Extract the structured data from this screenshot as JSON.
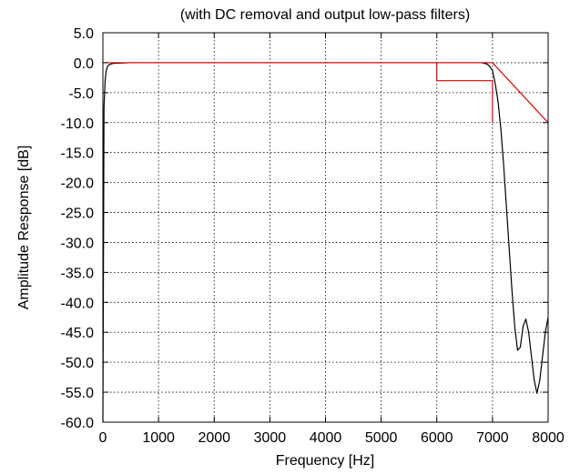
{
  "chart_data": {
    "type": "line",
    "title": "(with DC removal and output low-pass filters)",
    "xlabel": "Frequency [Hz]",
    "ylabel": "Amplitude Response [dB]",
    "xlim": [
      0,
      8000
    ],
    "ylim": [
      -60,
      5
    ],
    "xticks": [
      0,
      1000,
      2000,
      3000,
      4000,
      5000,
      6000,
      7000,
      8000
    ],
    "yticks": [
      5,
      0,
      -5,
      -10,
      -15,
      -20,
      -25,
      -30,
      -35,
      -40,
      -45,
      -50,
      -55,
      -60
    ],
    "ytick_labels": [
      "5.0",
      "0.0",
      "-5.0",
      "-10.0",
      "-15.0",
      "-20.0",
      "-25.0",
      "-30.0",
      "-35.0",
      "-40.0",
      "-45.0",
      "-50.0",
      "-55.0",
      "-60.0"
    ],
    "grid": true,
    "grid_style": "dotted",
    "legend": "none",
    "series": [
      {
        "color": "#000000",
        "x": [
          0,
          20,
          40,
          60,
          80,
          100,
          150,
          200,
          500,
          1000,
          2000,
          3000,
          4000,
          5000,
          6000,
          6500,
          6800,
          6900,
          6950,
          7000,
          7050,
          7100,
          7150,
          7200,
          7250,
          7300,
          7350,
          7400,
          7450,
          7500,
          7550,
          7600,
          7650,
          7700,
          7750,
          7800,
          7850,
          7900,
          7950,
          8000
        ],
        "y": [
          -60,
          -7.5,
          -3,
          -1.3,
          -0.7,
          -0.4,
          -0.2,
          -0.1,
          0,
          0,
          0,
          0,
          0,
          0,
          0,
          0,
          0,
          -0.2,
          -0.6,
          -1.3,
          -3.5,
          -6.5,
          -11,
          -17,
          -24,
          -31,
          -38,
          -44,
          -48,
          -47.5,
          -44,
          -42.8,
          -45,
          -49,
          -53,
          -55.2,
          -53,
          -49,
          -45,
          -42.5
        ]
      },
      {
        "color": "#e00000",
        "x": [
          0,
          7000,
          8000
        ],
        "y": [
          0,
          0,
          -10
        ]
      },
      {
        "color": "#e00000",
        "x": [
          6000,
          6000,
          7000,
          7000
        ],
        "y": [
          0,
          -3,
          -3,
          -10
        ]
      }
    ]
  }
}
